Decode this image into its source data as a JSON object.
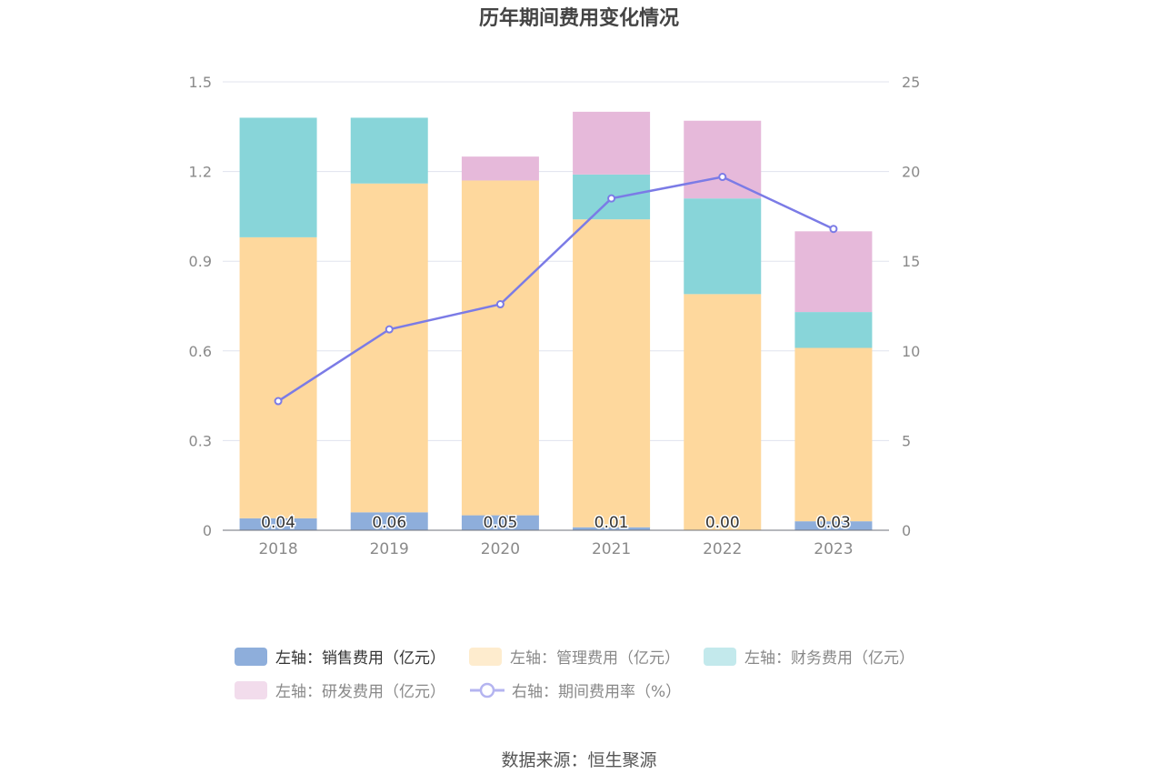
{
  "chart_data": {
    "type": "bar",
    "title": "历年期间费用变化情况",
    "categories": [
      "2018",
      "2019",
      "2020",
      "2021",
      "2022",
      "2023"
    ],
    "left_axis": {
      "min": 0,
      "max": 1.5,
      "ticks": [
        "0",
        "0.3",
        "0.6",
        "0.9",
        "1.2",
        "1.5"
      ]
    },
    "right_axis": {
      "min": 0,
      "max": 25,
      "ticks": [
        "0",
        "5",
        "10",
        "15",
        "20",
        "25"
      ]
    },
    "stacked_series": [
      {
        "name": "左轴：销售费用（亿元）",
        "color": "#8eaedb",
        "values": [
          0.04,
          0.06,
          0.05,
          0.01,
          0.0,
          0.03
        ],
        "data_labels": [
          "0.04",
          "0.06",
          "0.05",
          "0.01",
          "0.00",
          "0.03"
        ]
      },
      {
        "name": "左轴：管理费用（亿元）",
        "color": "#fed89d",
        "values": [
          0.94,
          1.1,
          1.12,
          1.03,
          0.79,
          0.58
        ]
      },
      {
        "name": "左轴：财务费用（亿元）",
        "color": "#88d5d9",
        "values": [
          0.4,
          0.22,
          0.0,
          0.15,
          0.32,
          0.12
        ]
      },
      {
        "name": "左轴：研发费用（亿元）",
        "color": "#e6b9da",
        "values": [
          0.0,
          0.0,
          0.08,
          0.21,
          0.26,
          0.27
        ]
      }
    ],
    "line_series": {
      "name": "右轴：期间费用率（%）",
      "color": "#7b7be6",
      "values": [
        7.2,
        11.2,
        12.6,
        18.5,
        19.7,
        16.8
      ]
    },
    "legend_position": "bottom",
    "grid": true
  },
  "footer": {
    "source": "数据来源：恒生聚源"
  }
}
